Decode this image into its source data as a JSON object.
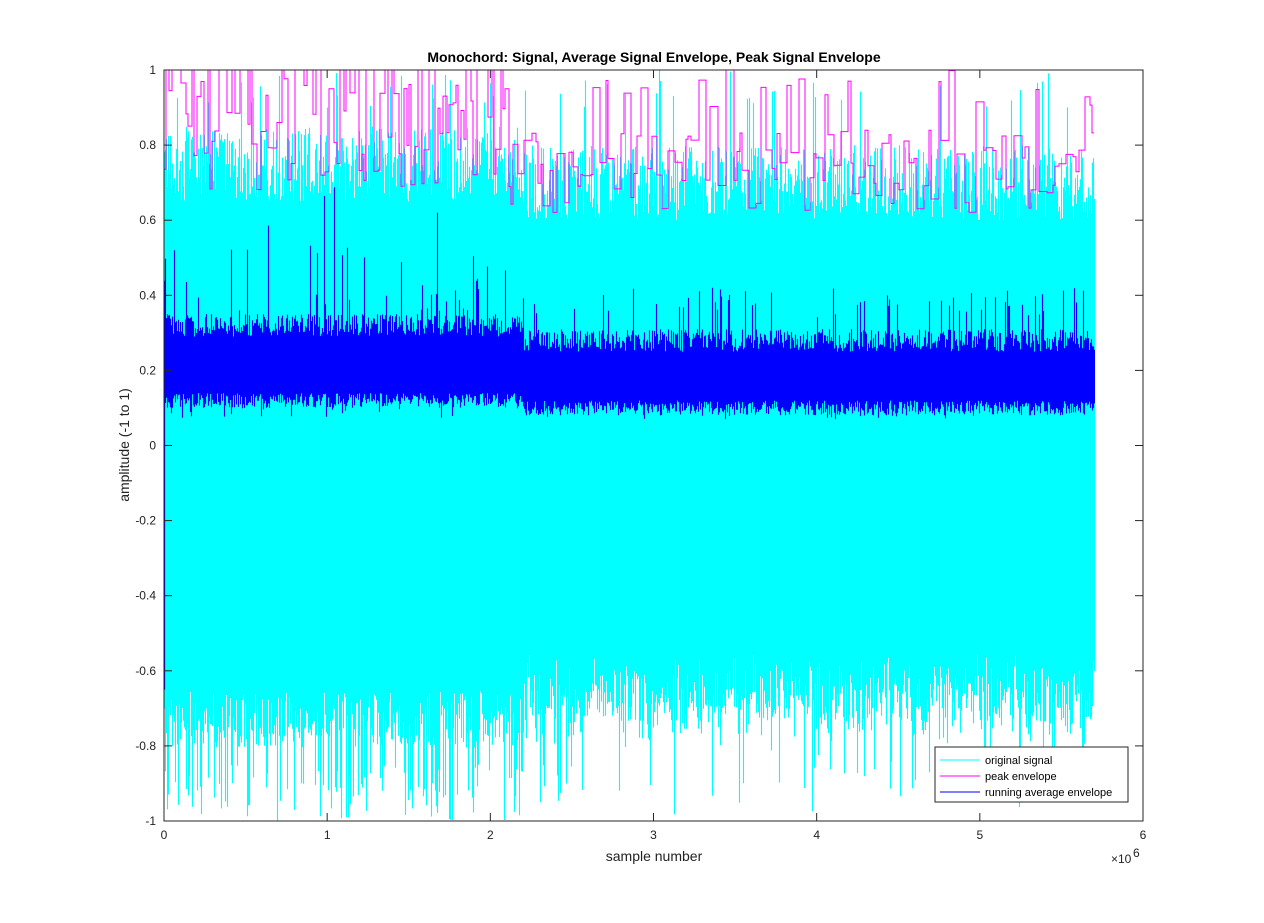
{
  "chart_data": {
    "type": "line",
    "title": "Monochord: Signal, Average Signal Envelope, Peak Signal Envelope",
    "xlabel": "sample number",
    "ylabel": "amplitude (-1 to 1)",
    "x_multiplier_base": "×10",
    "x_multiplier_exp": "6",
    "xlim": [
      0,
      6
    ],
    "ylim": [
      -1,
      1
    ],
    "x_ticks": [
      "0",
      "1",
      "2",
      "3",
      "4",
      "5",
      "6"
    ],
    "y_ticks": [
      "-1",
      "-0.8",
      "-0.6",
      "-0.4",
      "-0.2",
      "0",
      "0.2",
      "0.4",
      "0.6",
      "0.8",
      "1"
    ],
    "x_data_max": 5.7,
    "grid": false,
    "legend_position": "bottom-right",
    "series": [
      {
        "name": "original signal",
        "color": "#00ffff",
        "approx_max": 1.0,
        "approx_min": -1.0,
        "typical_upper": 0.75,
        "typical_lower": -0.7
      },
      {
        "name": "peak envelope",
        "color": "#ff00ff",
        "approx_max": 1.0,
        "typical_level": 0.7
      },
      {
        "name": "running average envelope",
        "color": "#0000ff",
        "center": 0.18,
        "band": [
          0.1,
          0.3
        ],
        "spikes_max": 0.7
      }
    ]
  }
}
